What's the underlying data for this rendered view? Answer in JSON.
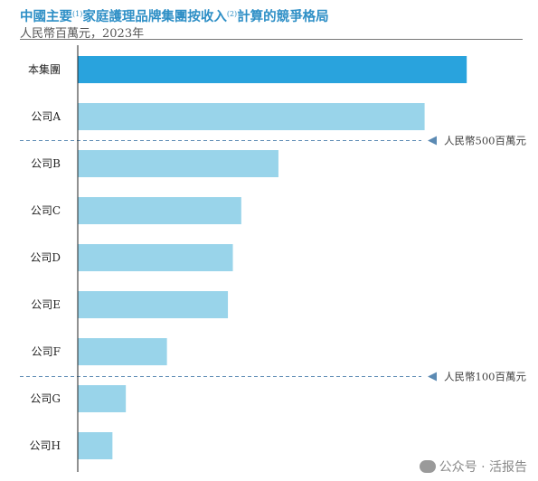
{
  "header": {
    "title_part1": "中國主要",
    "title_sup1": "(1)",
    "title_part2": "家庭護理品牌集團按收入",
    "title_sup2": "(2)",
    "title_part3": "計算的競爭格局",
    "subtitle": "人民幣百萬元，2023年"
  },
  "chart_data": {
    "type": "bar",
    "orientation": "horizontal",
    "categories": [
      "本集團",
      "公司A",
      "公司B",
      "公司C",
      "公司D",
      "公司E",
      "公司F",
      "公司G",
      "公司H"
    ],
    "values": [
      785,
      700,
      405,
      330,
      313,
      303,
      180,
      97,
      70
    ],
    "colors": {
      "highlight": "#29a3dd",
      "others": "#99d4ea",
      "reference_line": "#5b8ab3",
      "marker_text": "#444444"
    },
    "reference_lines": [
      {
        "value": 500,
        "label": "人民幣500百萬元"
      },
      {
        "value": 100,
        "label": "人民幣100百萬元"
      }
    ],
    "grid": false,
    "legend": "none"
  },
  "watermark": {
    "text": "公众号 · 活报告"
  }
}
